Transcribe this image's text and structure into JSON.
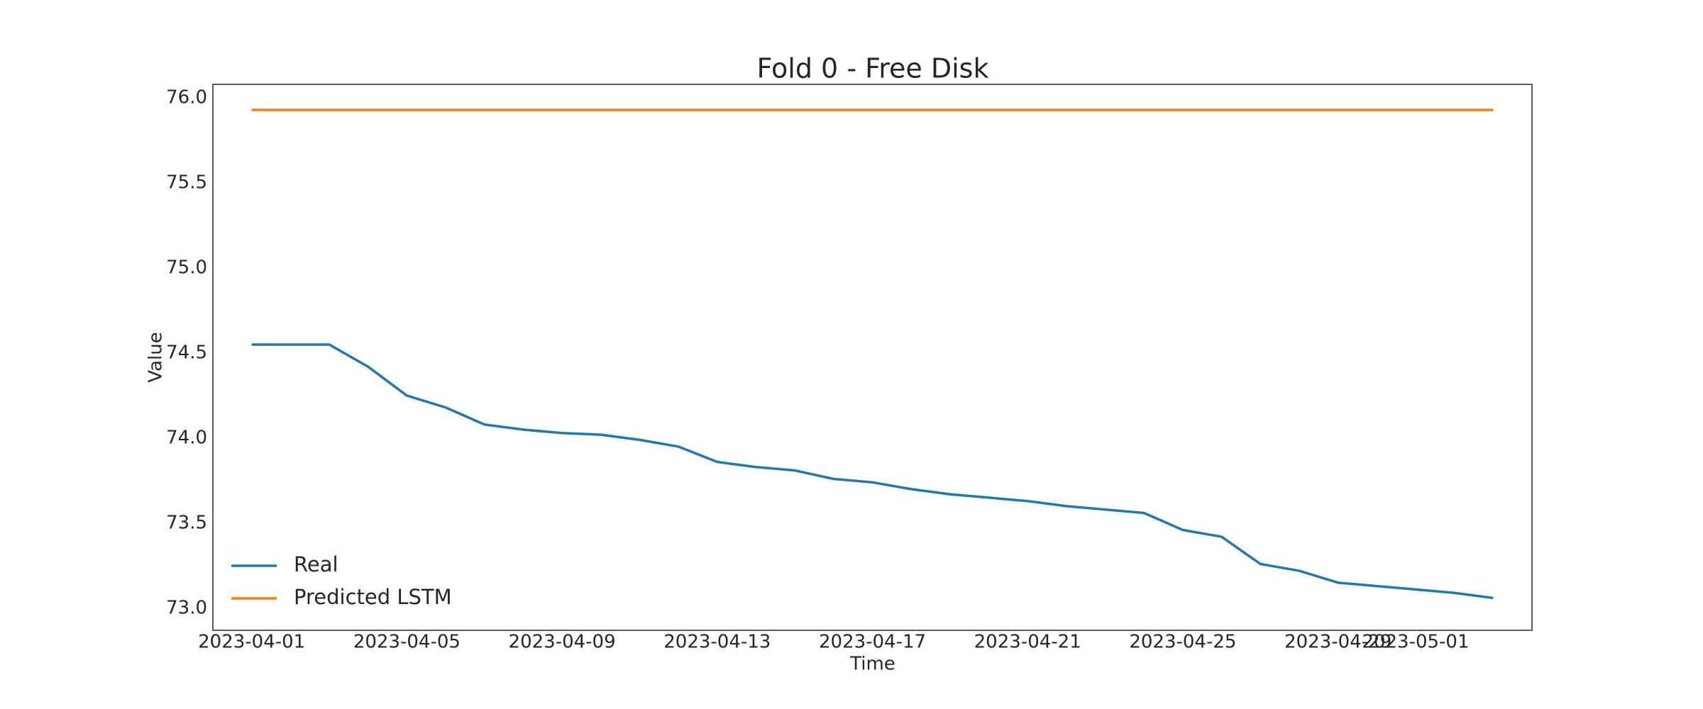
{
  "chart_data": {
    "type": "line",
    "title": "Fold 0 - Free Disk",
    "x_label": "Time",
    "y_label": "Value",
    "x": [
      "2023-04-01",
      "2023-04-02",
      "2023-04-03",
      "2023-04-04",
      "2023-04-05",
      "2023-04-06",
      "2023-04-07",
      "2023-04-08",
      "2023-04-09",
      "2023-04-10",
      "2023-04-11",
      "2023-04-12",
      "2023-04-13",
      "2023-04-14",
      "2023-04-15",
      "2023-04-16",
      "2023-04-17",
      "2023-04-18",
      "2023-04-19",
      "2023-04-20",
      "2023-04-21",
      "2023-04-22",
      "2023-04-23",
      "2023-04-24",
      "2023-04-25",
      "2023-04-26",
      "2023-04-27",
      "2023-04-28",
      "2023-04-29",
      "2023-04-30",
      "2023-05-01",
      "2023-05-02",
      "2023-05-03"
    ],
    "series": [
      {
        "name": "Real",
        "color": "#1f77b4",
        "values": [
          74.55,
          74.55,
          74.55,
          74.42,
          74.25,
          74.18,
          74.08,
          74.05,
          74.03,
          74.02,
          73.99,
          73.95,
          73.86,
          73.83,
          73.81,
          73.76,
          73.74,
          73.7,
          73.67,
          73.65,
          73.63,
          73.6,
          73.58,
          73.56,
          73.46,
          73.42,
          73.26,
          73.22,
          73.15,
          73.13,
          73.11,
          73.09,
          73.06
        ]
      },
      {
        "name": "Predicted LSTM",
        "color": "#ff7f0e",
        "values": [
          75.93,
          75.93,
          75.93,
          75.93,
          75.93,
          75.93,
          75.93,
          75.93,
          75.93,
          75.93,
          75.93,
          75.93,
          75.93,
          75.93,
          75.93,
          75.93,
          75.93,
          75.93,
          75.93,
          75.93,
          75.93,
          75.93,
          75.93,
          75.93,
          75.93,
          75.93,
          75.93,
          75.93,
          75.93,
          75.93,
          75.93,
          75.93,
          75.93
        ]
      }
    ],
    "xlim": [
      "2023-03-31",
      "2023-05-04"
    ],
    "xticks": [
      "2023-04-01",
      "2023-04-05",
      "2023-04-09",
      "2023-04-13",
      "2023-04-17",
      "2023-04-21",
      "2023-04-25",
      "2023-04-29",
      "2023-05-01"
    ],
    "ylim": [
      72.87,
      76.08
    ],
    "yticks": [
      {
        "value": 73,
        "label": "73.0"
      },
      {
        "value": 73.5,
        "label": "73.5"
      },
      {
        "value": 74,
        "label": "74.0"
      },
      {
        "value": 74.5,
        "label": "74.5"
      },
      {
        "value": 75,
        "label": "75.0"
      },
      {
        "value": 75.5,
        "label": "75.5"
      },
      {
        "value": 76,
        "label": "76.0"
      }
    ],
    "grid": false,
    "legend": "lower left"
  }
}
